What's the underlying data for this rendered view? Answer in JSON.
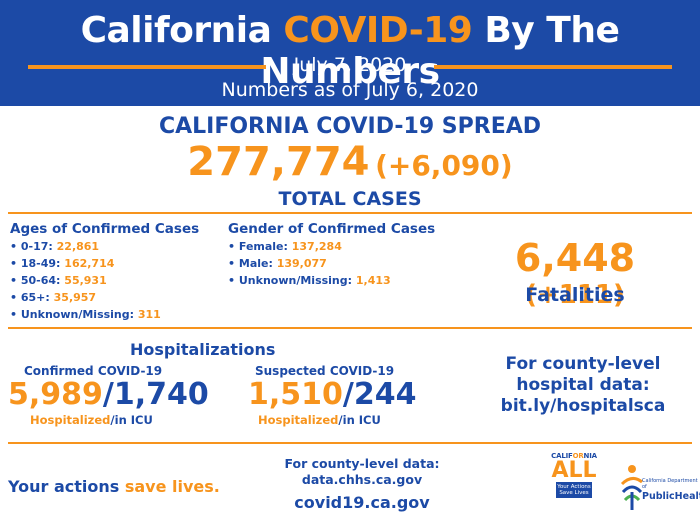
{
  "header": {
    "title_pre": "California ",
    "title_accent": "COVID-19",
    "title_post": " By The Numbers",
    "date": "July 7, 2020",
    "as_of": "Numbers as of July 6, 2020"
  },
  "spread": {
    "title": "CALIFORNIA COVID-19 SPREAD",
    "total": "277,774",
    "total_delta": "(+6,090)",
    "total_label": "TOTAL CASES"
  },
  "ages": {
    "title": "Ages of Confirmed Cases",
    "items": [
      {
        "label": "0-17: ",
        "value": "22,861"
      },
      {
        "label": "18-49: ",
        "value": "162,714"
      },
      {
        "label": "50-64: ",
        "value": "55,931"
      },
      {
        "label": "65+: ",
        "value": "35,957"
      },
      {
        "label": "Unknown/Missing: ",
        "value": "311"
      }
    ]
  },
  "gender": {
    "title": "Gender of Confirmed Cases",
    "items": [
      {
        "label": "Female: ",
        "value": "137,284"
      },
      {
        "label": "Male: ",
        "value": "139,077"
      },
      {
        "label": "Unknown/Missing: ",
        "value": "1,413"
      }
    ]
  },
  "fatalities": {
    "value": "6,448",
    "delta": "(+111)",
    "label": "Fatalities"
  },
  "hospitalizations": {
    "title": "Hospitalizations",
    "confirmed": {
      "label": "Confirmed COVID-19",
      "hospitalized": "5,989",
      "sep": "/",
      "icu": "1,740",
      "foot_hosp": "Hospitalized",
      "foot_icu": "/in ICU"
    },
    "suspected": {
      "label": "Suspected COVID-19",
      "hospitalized": "1,510",
      "sep": "/",
      "icu": "244",
      "foot_hosp": "Hospitalized",
      "foot_icu": "/in ICU"
    },
    "county_line1": "For county-level",
    "county_line2": "hospital data:",
    "county_link": "bit.ly/hospitalsca"
  },
  "footer": {
    "actions_pre": "Your actions ",
    "actions_accent": "save lives.",
    "county_data_line1": "For county-level data:",
    "county_data_link": "data.chhs.ca.gov",
    "covid_site": "covid19.ca.gov",
    "ca_logo": {
      "top_a": "CALIF",
      "top_b": "OR",
      "top_c": "NIA",
      "big": "ALL",
      "box_line1": "Your Actions",
      "box_line2": "Save Lives"
    },
    "ph_logo": {
      "small": "California Department of",
      "big": "PublicHealth"
    }
  },
  "colors": {
    "brand_blue": "#1c4aa6",
    "accent_orange": "#f7941d"
  }
}
